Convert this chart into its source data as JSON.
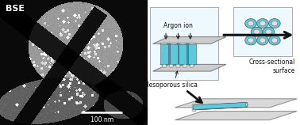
{
  "bse_label": "BSE",
  "scale_bar_label": "100 nm",
  "argon_ion_label": "Argon ion",
  "mesoporous_label": "Mesoporous silica",
  "cross_section_label": "Cross-sectional\nsurface",
  "bg_color": "#ffffff",
  "cyl_light": "#b0e8f0",
  "cyl_mid": "#60c8dc",
  "cyl_dark": "#309ab0",
  "sphere_fill": "#e0e0e0",
  "sphere_ec": "#888888",
  "plane_fill": "#d8d8d8",
  "plane_ec": "#777777",
  "box_fill": "#eef8ff",
  "box_ec": "#aaaaaa",
  "label_fontsize": 5.5,
  "bse_fontsize": 8
}
